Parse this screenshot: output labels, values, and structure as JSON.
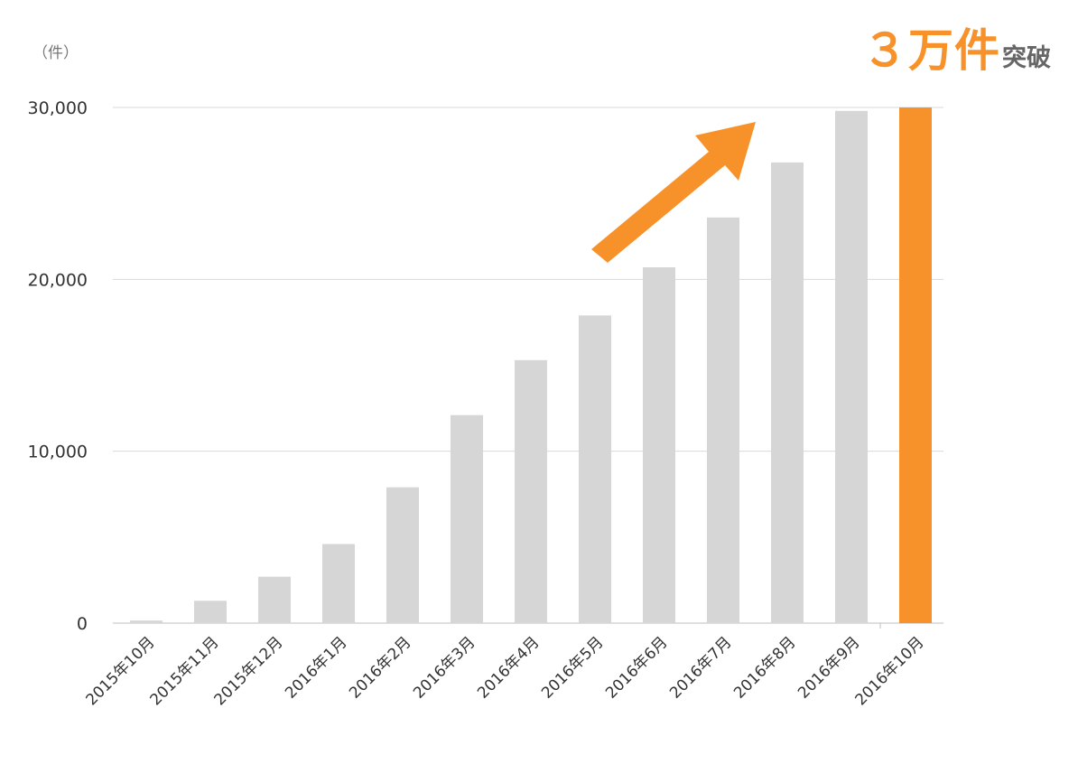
{
  "unit_label": "（件）",
  "headline": {
    "main": "３万件",
    "suffix": "突破"
  },
  "colors": {
    "bar": "#D6D6D6",
    "highlight": "#F7922A",
    "grid": "#D9D9D9",
    "axis_text": "#333333"
  },
  "chart_data": {
    "type": "bar",
    "categories": [
      "2015年10月",
      "2015年11月",
      "2015年12月",
      "2016年1月",
      "2016年2月",
      "2016年3月",
      "2016年4月",
      "2016年5月",
      "2016年6月",
      "2016年7月",
      "2016年8月",
      "2016年9月",
      "2016年10月"
    ],
    "values": [
      150,
      1300,
      2700,
      4600,
      7900,
      12100,
      15300,
      17900,
      20700,
      23600,
      26800,
      29800,
      30000
    ],
    "highlight_index": 12,
    "ylim": [
      0,
      30000
    ],
    "yticks": [
      0,
      10000,
      20000,
      30000
    ],
    "ytick_labels": [
      "0",
      "10,000",
      "20,000",
      "30,000"
    ],
    "grid": true,
    "annotation": "upward-arrow"
  }
}
